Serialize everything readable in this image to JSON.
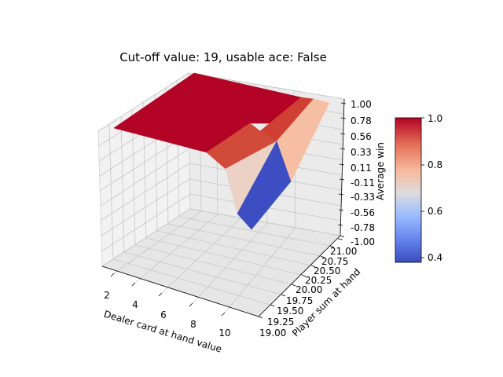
{
  "chart_data": {
    "type": "surface3d",
    "title": "Cut-off value: 19, usable ace: False",
    "xlabel": "Dealer card at hand value",
    "ylabel": "Player sum at hand",
    "zlabel": "Average win",
    "x_ticks": [
      "2",
      "4",
      "6",
      "8",
      "10"
    ],
    "y_ticks": [
      "19.00",
      "19.25",
      "19.50",
      "19.75",
      "20.00",
      "20.25",
      "20.50",
      "20.75",
      "21.00"
    ],
    "z_ticks": [
      "-1.00",
      "-0.78",
      "-0.56",
      "-0.33",
      "-0.11",
      "0.11",
      "0.33",
      "0.56",
      "0.78",
      "1.00"
    ],
    "colorbar": {
      "ticks": [
        "0.4",
        "0.6",
        "0.8",
        "1.0"
      ],
      "min": 0.38,
      "max": 1.0,
      "colormap": "coolwarm"
    },
    "surface_facets": [
      {
        "name": "plateau",
        "value": 1.0,
        "color": "#b40426"
      },
      {
        "name": "upper-right-strip",
        "value": 0.93,
        "color": "#cf3f33"
      },
      {
        "name": "mid-step",
        "value": 0.9,
        "color": "#d24a3a"
      },
      {
        "name": "left-dip",
        "value": 0.7,
        "color": "#ecd1c5"
      },
      {
        "name": "right-wing",
        "value": 0.78,
        "color": "#f6bfa4"
      },
      {
        "name": "valley",
        "value": 0.38,
        "color": "#3c4ec2"
      }
    ]
  }
}
